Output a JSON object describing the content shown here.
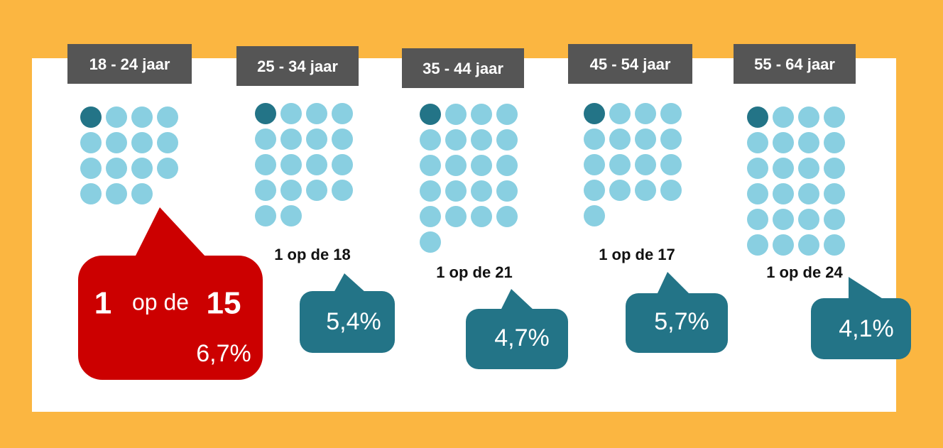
{
  "groups": [
    {
      "label": "18 - 24 jaar",
      "one": "1",
      "op": "op de",
      "n": 15,
      "pct": "6,7%"
    },
    {
      "label": "25 - 34 jaar",
      "one": "1",
      "op": "op de",
      "n": 18,
      "pct": "5,4%"
    },
    {
      "label": "35 - 44 jaar",
      "one": "1",
      "op": "op de",
      "n": 21,
      "pct": "4,7%"
    },
    {
      "label": "45 - 54 jaar",
      "one": "1",
      "op": "op de",
      "n": 17,
      "pct": "5,7%"
    },
    {
      "label": "55 - 64 jaar",
      "one": "1",
      "op": "op de",
      "n": 24,
      "pct": "4,1%"
    }
  ]
}
